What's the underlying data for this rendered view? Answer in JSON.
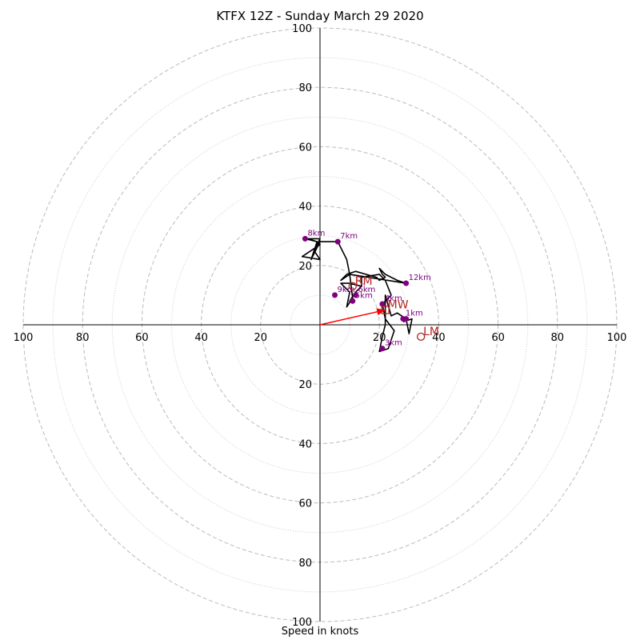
{
  "chart_data": {
    "type": "hodograph",
    "title": "KTFX 12Z - Sunday March 29 2020",
    "xlabel": "Speed in knots",
    "max_speed": 100,
    "rings_major": [
      20,
      40,
      60,
      80,
      100
    ],
    "rings_minor": [
      10,
      30,
      50,
      70,
      90
    ],
    "tick_labels": [
      "20",
      "40",
      "60",
      "80",
      "100"
    ],
    "grid": true,
    "colors": {
      "hodo_line": "#000000",
      "height_points": "#800080",
      "storm_motion": "#b22222",
      "shear_vector": "#ff0000",
      "grid": "#bbbbbb"
    },
    "hodograph": [
      {
        "u": 28,
        "v": 1
      },
      {
        "u": 31,
        "v": 2
      },
      {
        "u": 30,
        "v": -3
      },
      {
        "u": 29,
        "v": 2
      },
      {
        "u": 26,
        "v": 4
      },
      {
        "u": 24,
        "v": 3
      },
      {
        "u": 22,
        "v": 10
      },
      {
        "u": 22,
        "v": 5
      },
      {
        "u": 22,
        "v": 0
      },
      {
        "u": 21,
        "v": -4
      },
      {
        "u": 20,
        "v": -9
      },
      {
        "u": 23,
        "v": -8
      },
      {
        "u": 25,
        "v": -2
      },
      {
        "u": 22,
        "v": 2
      },
      {
        "u": 21,
        "v": 7
      },
      {
        "u": 24,
        "v": 10
      },
      {
        "u": 22,
        "v": 15
      },
      {
        "u": 20,
        "v": 17
      },
      {
        "u": 14,
        "v": 16
      },
      {
        "u": 14,
        "v": 13
      },
      {
        "u": 12,
        "v": 11
      },
      {
        "u": 10,
        "v": 8
      },
      {
        "u": 12,
        "v": 11
      },
      {
        "u": 14,
        "v": 13
      },
      {
        "u": 10,
        "v": 14
      },
      {
        "u": 7,
        "v": 14
      },
      {
        "u": 10,
        "v": 11
      },
      {
        "u": 9,
        "v": 6
      },
      {
        "u": 11,
        "v": 9
      },
      {
        "u": 10,
        "v": 17
      },
      {
        "u": 7,
        "v": 15
      },
      {
        "u": 9,
        "v": 17
      },
      {
        "u": 12,
        "v": 18
      },
      {
        "u": 19,
        "v": 16
      },
      {
        "u": 20,
        "v": 15
      },
      {
        "u": 22,
        "v": 16
      },
      {
        "u": 21,
        "v": 17
      },
      {
        "u": 20,
        "v": 19
      },
      {
        "u": 22,
        "v": 17
      },
      {
        "u": 24,
        "v": 16
      },
      {
        "u": 26,
        "v": 15
      },
      {
        "u": 29,
        "v": 14
      },
      {
        "u": 29,
        "v": 14
      },
      {
        "u": 10,
        "v": 17
      },
      {
        "u": 9,
        "v": 22
      },
      {
        "u": 6,
        "v": 28
      },
      {
        "u": 0,
        "v": 28
      },
      {
        "u": -3,
        "v": 22
      },
      {
        "u": -1,
        "v": 28
      },
      {
        "u": -5,
        "v": 29
      },
      {
        "u": 0,
        "v": 29
      },
      {
        "u": -2,
        "v": 25
      },
      {
        "u": 0,
        "v": 22
      },
      {
        "u": -6,
        "v": 23
      },
      {
        "u": 0,
        "v": 27
      },
      {
        "u": -1,
        "v": 28
      },
      {
        "u": -4,
        "v": 29
      },
      {
        "u": -5,
        "v": 29
      }
    ],
    "height_points": [
      {
        "label": "1km",
        "u": 28,
        "v": 2
      },
      {
        "label": "",
        "u": 29,
        "v": 2
      },
      {
        "label": "3km",
        "u": 21,
        "v": -8
      },
      {
        "label": "4km",
        "u": 21,
        "v": 7
      },
      {
        "label": "5km",
        "u": 11,
        "v": 8
      },
      {
        "label": "6km",
        "u": 12,
        "v": 10
      },
      {
        "label": "7km",
        "u": 6,
        "v": 28
      },
      {
        "label": "8km",
        "u": -5,
        "v": 29
      },
      {
        "label": "9km",
        "u": 5,
        "v": 10
      },
      {
        "label": "12km",
        "u": 29,
        "v": 14
      }
    ],
    "storm_motion": [
      {
        "label": "RM",
        "u": 11,
        "v": 13,
        "marker": "circle"
      },
      {
        "label": "MW",
        "u": 22,
        "v": 5,
        "marker": "square"
      },
      {
        "label": "LM",
        "u": 34,
        "v": -4,
        "marker": "circle"
      }
    ],
    "shear_vector": {
      "u": 22,
      "v": 5
    }
  }
}
